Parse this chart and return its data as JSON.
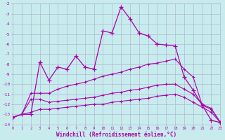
{
  "xlabel": "Windchill (Refroidissement éolien,°C)",
  "bg_color": "#c8ecee",
  "grid_color": "#b0b8d0",
  "line_color": "#aa00aa",
  "xlim": [
    0,
    23
  ],
  "ylim": [
    -14,
    -2
  ],
  "x": [
    0,
    1,
    2,
    3,
    4,
    5,
    6,
    7,
    8,
    9,
    10,
    11,
    12,
    13,
    14,
    15,
    16,
    17,
    18,
    19,
    20,
    21,
    22,
    23
  ],
  "y_main": [
    -13.3,
    -13.0,
    -13.0,
    -7.8,
    -9.6,
    -8.3,
    -8.5,
    -7.2,
    -8.3,
    -8.5,
    -4.7,
    -4.9,
    -2.3,
    -3.5,
    -4.9,
    -5.2,
    -6.0,
    -6.1,
    -6.2,
    -9.3,
    -10.6,
    -12.1,
    -13.6,
    -13.8
  ],
  "y_line1": [
    -13.3,
    -13.0,
    -10.9,
    -10.9,
    -10.9,
    -10.5,
    -10.2,
    -10.0,
    -9.8,
    -9.5,
    -9.2,
    -9.0,
    -8.8,
    -8.5,
    -8.3,
    -8.0,
    -7.9,
    -7.7,
    -7.5,
    -8.5,
    -9.3,
    -12.1,
    -12.5,
    -13.8
  ],
  "y_line2": [
    -13.3,
    -13.0,
    -11.5,
    -11.5,
    -11.8,
    -11.7,
    -11.6,
    -11.5,
    -11.4,
    -11.3,
    -11.1,
    -10.9,
    -10.8,
    -10.6,
    -10.5,
    -10.3,
    -10.1,
    -10.0,
    -10.0,
    -10.5,
    -11.0,
    -12.0,
    -12.4,
    -13.8
  ],
  "y_line3": [
    -13.3,
    -13.0,
    -12.8,
    -12.5,
    -12.5,
    -12.4,
    -12.3,
    -12.2,
    -12.1,
    -12.0,
    -12.0,
    -11.8,
    -11.7,
    -11.6,
    -11.5,
    -11.4,
    -11.2,
    -11.1,
    -11.0,
    -11.3,
    -11.8,
    -12.3,
    -12.8,
    -13.8
  ]
}
